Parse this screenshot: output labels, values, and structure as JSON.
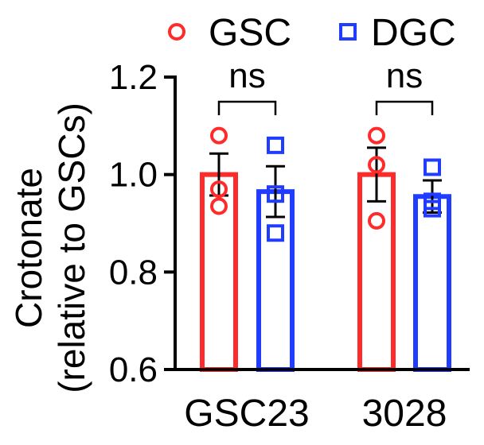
{
  "chart_data": {
    "type": "bar",
    "categories": [
      "GSC23",
      "3028"
    ],
    "ylabel_line1": "Crotonate",
    "ylabel_line2": "(relative to GSCs)",
    "ylim": [
      0.6,
      1.2
    ],
    "yticks": [
      0.6,
      0.8,
      1.0,
      1.2
    ],
    "ytick_labels": [
      "0.6",
      "0.8",
      "1.0",
      "1.2"
    ],
    "legend_position": "top",
    "series": [
      {
        "name": "GSC",
        "color": "#ff2a2a",
        "marker": "circle",
        "values": [
          1.0,
          1.0
        ],
        "errors": [
          0.043,
          0.055
        ],
        "points": [
          [
            1.08,
            0.97,
            0.935
          ],
          [
            1.08,
            1.02,
            0.905
          ]
        ]
      },
      {
        "name": "DGC",
        "color": "#1f3cff",
        "marker": "square",
        "values": [
          0.965,
          0.955
        ],
        "errors": [
          0.052,
          0.033
        ],
        "points": [
          [
            1.06,
            0.96,
            0.88
          ],
          [
            1.015,
            0.945,
            0.93
          ]
        ]
      }
    ],
    "annotations": [
      {
        "text": "ns",
        "category": "GSC23"
      },
      {
        "text": "ns",
        "category": "3028"
      }
    ]
  }
}
